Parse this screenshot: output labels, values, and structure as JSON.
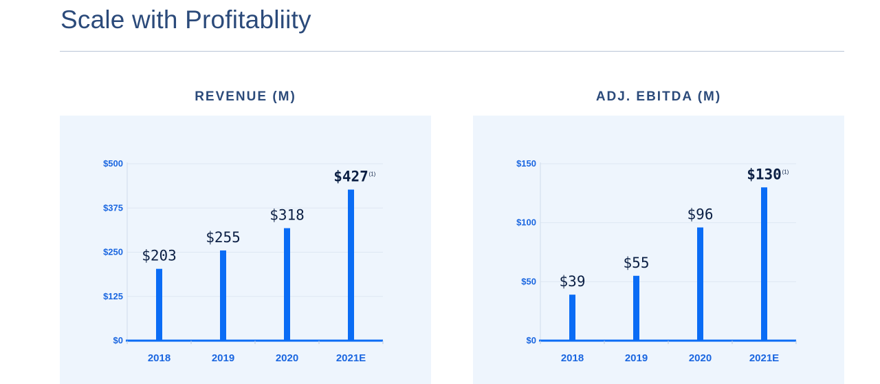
{
  "page": {
    "title": "Scale with Profitabliity"
  },
  "colors": {
    "bar": "#0a6cf5",
    "axis": "#1a66e0",
    "title": "#2b4a7a",
    "panel_bg": "#eef5fd",
    "label": "#0b1f44"
  },
  "chart_data": [
    {
      "type": "bar",
      "title": "REVENUE (M)",
      "categories": [
        "2018",
        "2019",
        "2020",
        "2021E"
      ],
      "values": [
        203,
        255,
        318,
        427
      ],
      "value_labels": [
        "$203",
        "$255",
        "$318",
        "$427"
      ],
      "emphasized_index": 3,
      "emphasized_note": "(1)",
      "ylim": [
        0,
        500
      ],
      "yticks": [
        0,
        125,
        250,
        375,
        500
      ],
      "ytick_labels": [
        "$0",
        "$125",
        "$250",
        "$375",
        "$500"
      ],
      "grid": true
    },
    {
      "type": "bar",
      "title": "ADJ. EBITDA (M)",
      "categories": [
        "2018",
        "2019",
        "2020",
        "2021E"
      ],
      "values": [
        39,
        55,
        96,
        130
      ],
      "value_labels": [
        "$39",
        "$55",
        "$96",
        "$130"
      ],
      "emphasized_index": 3,
      "emphasized_note": "(1)",
      "ylim": [
        0,
        150
      ],
      "yticks": [
        0,
        50,
        100,
        150
      ],
      "ytick_labels": [
        "$0",
        "$50",
        "$100",
        "$150"
      ],
      "grid": true
    }
  ]
}
